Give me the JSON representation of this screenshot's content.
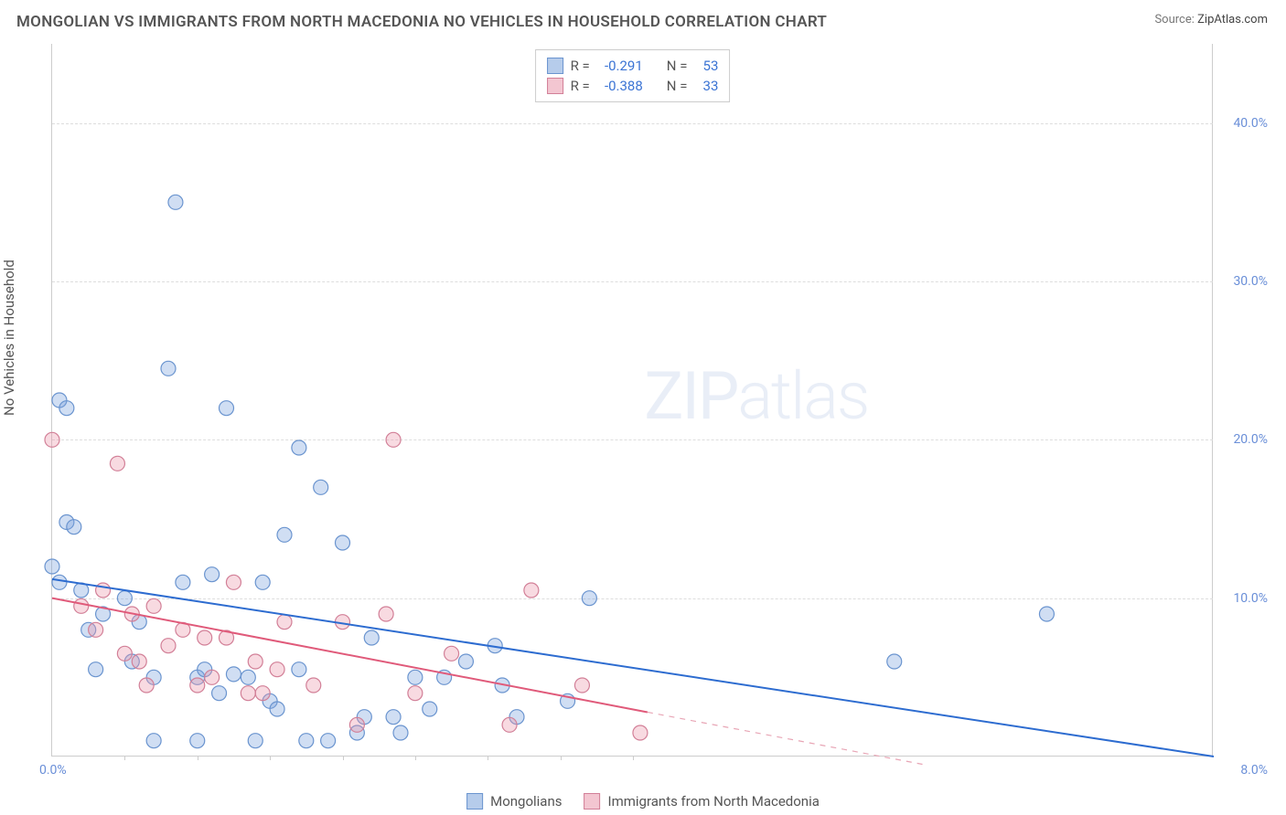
{
  "title": "MONGOLIAN VS IMMIGRANTS FROM NORTH MACEDONIA NO VEHICLES IN HOUSEHOLD CORRELATION CHART",
  "source_label": "Source:",
  "source_value": "ZipAtlas.com",
  "ylabel": "No Vehicles in Household",
  "watermark_a": "ZIP",
  "watermark_b": "atlas",
  "chart": {
    "type": "scatter",
    "xlim": [
      0,
      8
    ],
    "ylim": [
      0,
      45
    ],
    "x_tick_left": "0.0%",
    "x_tick_right": "8.0%",
    "y_ticks": [
      {
        "v": 10,
        "label": "10.0%"
      },
      {
        "v": 20,
        "label": "20.0%"
      },
      {
        "v": 30,
        "label": "30.0%"
      },
      {
        "v": 40,
        "label": "40.0%"
      }
    ],
    "x_minor_ticks": [
      0.5,
      1.0,
      1.5,
      2.0,
      2.5,
      3.0,
      3.5,
      4.0
    ],
    "background_color": "#ffffff",
    "grid_color": "#dddddd",
    "axis_color": "#cccccc",
    "marker_radius": 8,
    "marker_stroke_width": 1.2,
    "series": [
      {
        "name": "Mongolians",
        "fill": "rgba(120,160,220,0.35)",
        "stroke": "#6a94cf",
        "swatch_fill": "#b6cceb",
        "swatch_stroke": "#6a94cf",
        "r_label": "R =",
        "r_value": "-0.291",
        "n_label": "N =",
        "n_value": "53",
        "trend": {
          "x1": 0,
          "y1": 11.2,
          "x2": 8.0,
          "y2": 0.0,
          "color": "#2d6cd0",
          "width": 2
        },
        "points": [
          [
            0.05,
            11.0
          ],
          [
            0.05,
            22.5
          ],
          [
            0.1,
            22.0
          ],
          [
            0.1,
            14.8
          ],
          [
            0.15,
            14.5
          ],
          [
            0.2,
            10.5
          ],
          [
            0.25,
            8.0
          ],
          [
            0.3,
            5.5
          ],
          [
            0.35,
            9.0
          ],
          [
            0.5,
            10.0
          ],
          [
            0.55,
            6.0
          ],
          [
            0.6,
            8.5
          ],
          [
            0.7,
            5.0
          ],
          [
            0.7,
            1.0
          ],
          [
            0.8,
            24.5
          ],
          [
            0.85,
            35.0
          ],
          [
            0.9,
            11.0
          ],
          [
            1.0,
            5.0
          ],
          [
            1.0,
            1.0
          ],
          [
            1.05,
            5.5
          ],
          [
            1.1,
            11.5
          ],
          [
            1.15,
            4.0
          ],
          [
            1.2,
            22.0
          ],
          [
            1.25,
            5.2
          ],
          [
            1.35,
            5.0
          ],
          [
            1.4,
            1.0
          ],
          [
            1.45,
            11.0
          ],
          [
            1.5,
            3.5
          ],
          [
            1.55,
            3.0
          ],
          [
            1.6,
            14.0
          ],
          [
            1.7,
            19.5
          ],
          [
            1.7,
            5.5
          ],
          [
            1.75,
            1.0
          ],
          [
            1.85,
            17.0
          ],
          [
            1.9,
            1.0
          ],
          [
            2.0,
            13.5
          ],
          [
            2.1,
            1.5
          ],
          [
            2.15,
            2.5
          ],
          [
            2.2,
            7.5
          ],
          [
            2.35,
            2.5
          ],
          [
            2.4,
            1.5
          ],
          [
            2.5,
            5.0
          ],
          [
            2.6,
            3.0
          ],
          [
            2.7,
            5.0
          ],
          [
            2.85,
            6.0
          ],
          [
            3.05,
            7.0
          ],
          [
            3.1,
            4.5
          ],
          [
            3.2,
            2.5
          ],
          [
            3.55,
            3.5
          ],
          [
            3.7,
            10.0
          ],
          [
            5.8,
            6.0
          ],
          [
            6.85,
            9.0
          ],
          [
            0.0,
            12.0
          ]
        ]
      },
      {
        "name": "Immigrants from North Macedonia",
        "fill": "rgba(235,150,170,0.35)",
        "stroke": "#d27f97",
        "swatch_fill": "#f3c6d1",
        "swatch_stroke": "#d27f97",
        "r_label": "R =",
        "r_value": "-0.388",
        "n_label": "N =",
        "n_value": "33",
        "trend": {
          "x1": 0,
          "y1": 10.0,
          "x2": 4.1,
          "y2": 2.8,
          "color": "#e05a7a",
          "width": 2
        },
        "trend_dashed": {
          "x1": 4.1,
          "y1": 2.8,
          "x2": 6.0,
          "y2": -0.5,
          "color": "#e8a5b5",
          "width": 1.2,
          "dash": "6,6"
        },
        "points": [
          [
            0.0,
            20.0
          ],
          [
            0.2,
            9.5
          ],
          [
            0.3,
            8.0
          ],
          [
            0.35,
            10.5
          ],
          [
            0.45,
            18.5
          ],
          [
            0.5,
            6.5
          ],
          [
            0.55,
            9.0
          ],
          [
            0.6,
            6.0
          ],
          [
            0.65,
            4.5
          ],
          [
            0.7,
            9.5
          ],
          [
            0.8,
            7.0
          ],
          [
            0.9,
            8.0
          ],
          [
            1.0,
            4.5
          ],
          [
            1.05,
            7.5
          ],
          [
            1.1,
            5.0
          ],
          [
            1.2,
            7.5
          ],
          [
            1.25,
            11.0
          ],
          [
            1.35,
            4.0
          ],
          [
            1.4,
            6.0
          ],
          [
            1.45,
            4.0
          ],
          [
            1.55,
            5.5
          ],
          [
            1.6,
            8.5
          ],
          [
            1.8,
            4.5
          ],
          [
            2.0,
            8.5
          ],
          [
            2.1,
            2.0
          ],
          [
            2.3,
            9.0
          ],
          [
            2.35,
            20.0
          ],
          [
            2.5,
            4.0
          ],
          [
            2.75,
            6.5
          ],
          [
            3.15,
            2.0
          ],
          [
            3.3,
            10.5
          ],
          [
            3.65,
            4.5
          ],
          [
            4.05,
            1.5
          ]
        ]
      }
    ]
  }
}
